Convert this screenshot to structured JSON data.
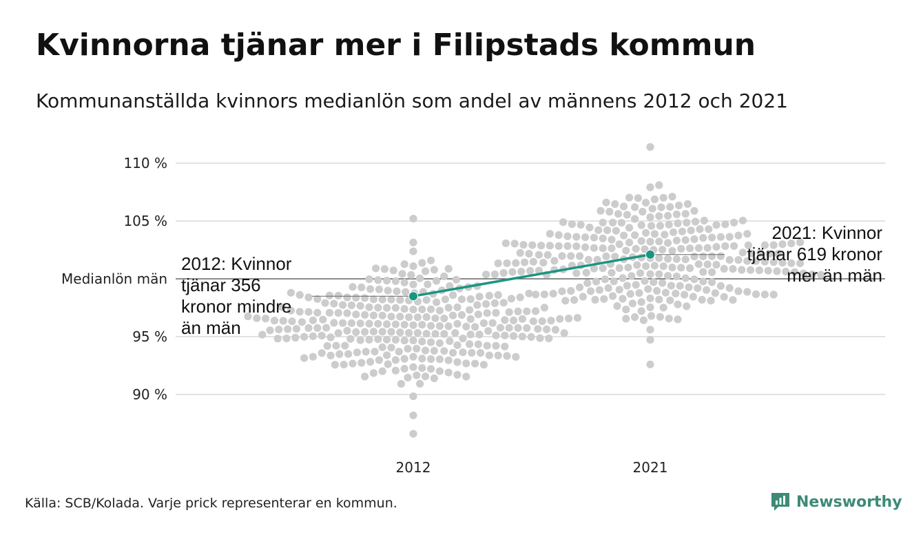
{
  "title": "Kvinnorna tjänar mer i Filipstads kommun",
  "subtitle": "Kommunanställda kvinnors medianlön som andel av männens 2012 och 2021",
  "source": "Källa: SCB/Kolada. Varje prick representerar en kommun.",
  "brand": {
    "name": "Newsworthy",
    "icon": "newsworthy-logo-icon",
    "color": "#3d8a77"
  },
  "chart_data": {
    "type": "scatter",
    "subtype": "beeswarm",
    "title": "Kvinnorna tjänar mer i Filipstads kommun",
    "categories": [
      "2012",
      "2021"
    ],
    "ylim": [
      86,
      112
    ],
    "y_ticks": [
      {
        "value": 90,
        "label": "90 %"
      },
      {
        "value": 95,
        "label": "95 %"
      },
      {
        "value": 100,
        "label": "Medianlön män"
      },
      {
        "value": 105,
        "label": "105 %"
      },
      {
        "value": 110,
        "label": "110 %"
      }
    ],
    "reference_line": {
      "value": 100,
      "label": "Medianlön män"
    },
    "grid": true,
    "highlight": {
      "name": "Filipstad",
      "color": "#1a9580",
      "points": [
        {
          "x": "2012",
          "y": 98.5
        },
        {
          "x": "2021",
          "y": 102.1
        }
      ]
    },
    "annotations": [
      {
        "x": "2012",
        "lines": [
          "2012: Kvinnor",
          "tjänar 356",
          "kronor mindre",
          "än män"
        ]
      },
      {
        "x": "2021",
        "lines": [
          "2021: Kvinnor",
          "tjänar 619 kronor",
          "mer än män"
        ]
      }
    ],
    "distribution": [
      {
        "x": "2012",
        "count": 290,
        "mean": 96.0,
        "sd": 2.4,
        "min": 86.6,
        "max": 105.2,
        "color": "#cccccc"
      },
      {
        "x": "2021",
        "count": 290,
        "mean": 101.8,
        "sd": 2.6,
        "min": 92.6,
        "max": 111.4,
        "color": "#cccccc"
      }
    ]
  }
}
